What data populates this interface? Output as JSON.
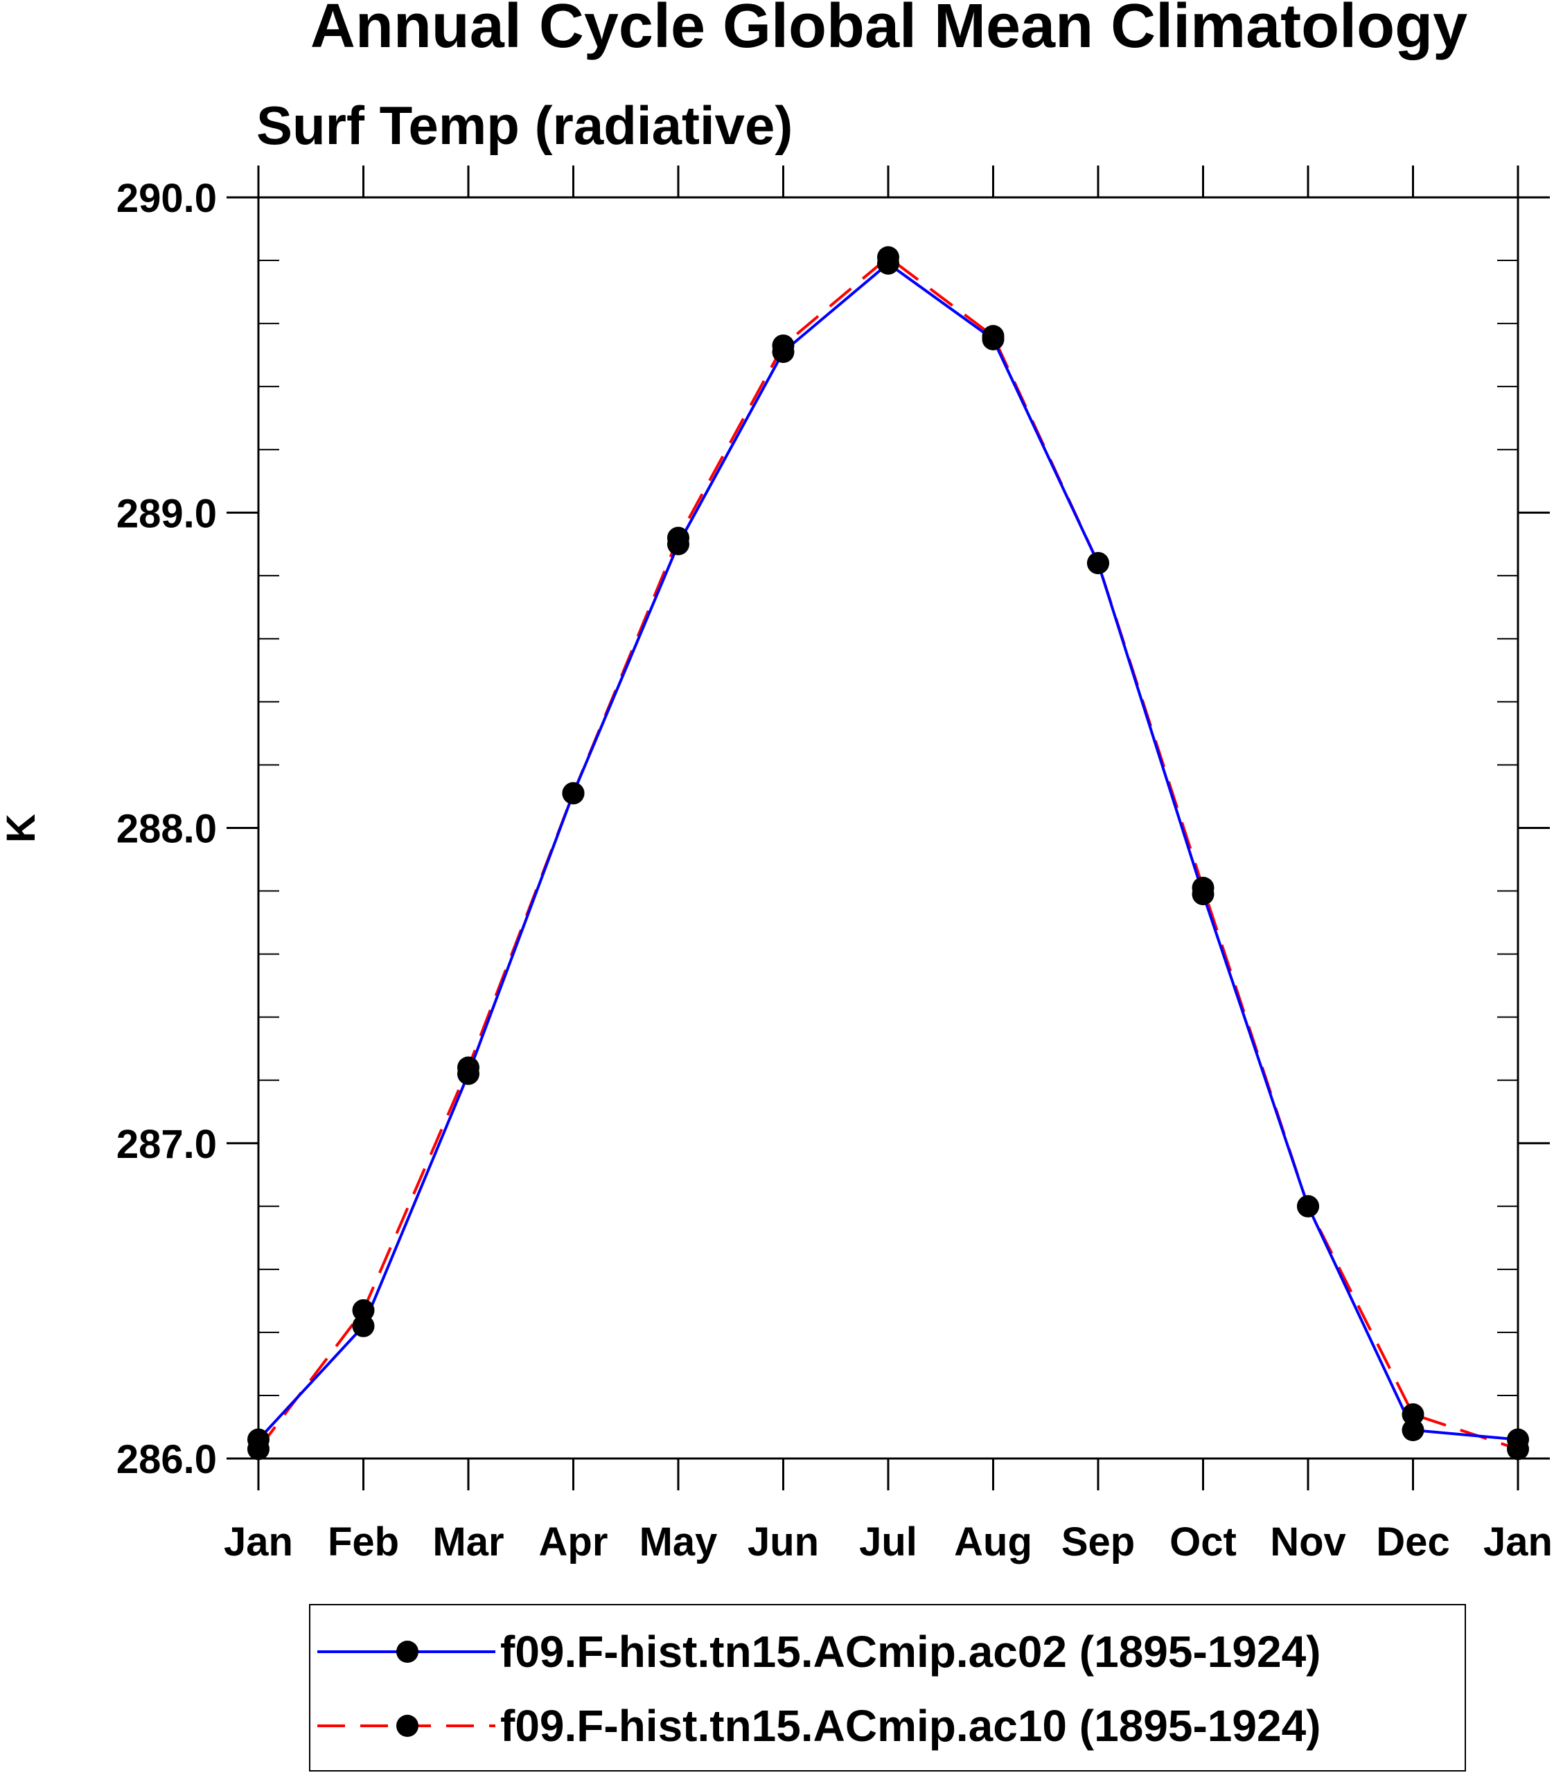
{
  "chart_data": {
    "type": "line",
    "title": "Annual Cycle Global Mean Climatology",
    "subtitle": "Surf Temp (radiative)",
    "xlabel": "",
    "ylabel": "K",
    "categories": [
      "Jan",
      "Feb",
      "Mar",
      "Apr",
      "May",
      "Jun",
      "Jul",
      "Aug",
      "Sep",
      "Oct",
      "Nov",
      "Dec",
      "Jan"
    ],
    "ylim": [
      286.0,
      290.0
    ],
    "yticks": [
      "286.0",
      "287.0",
      "288.0",
      "289.0",
      "290.0"
    ],
    "ytick_values": [
      286,
      287,
      288,
      289,
      290
    ],
    "minor_step": 0.2,
    "grid": false,
    "legend_position": "bottom",
    "series": [
      {
        "name": "f09.F-hist.tn15.ACmip.ac02 (1895-1924)",
        "color": "#0000ff",
        "dash": "solid",
        "marker": "circle",
        "values": [
          286.06,
          286.42,
          287.22,
          288.11,
          288.9,
          289.51,
          289.79,
          289.55,
          288.84,
          287.79,
          286.8,
          286.09,
          286.06
        ]
      },
      {
        "name": "f09.F-hist.tn15.ACmip.ac10 (1895-1924)",
        "color": "#ff0000",
        "dash": "dashed",
        "marker": "circle",
        "values": [
          286.03,
          286.47,
          287.24,
          288.11,
          288.92,
          289.53,
          289.81,
          289.56,
          288.84,
          287.81,
          286.8,
          286.14,
          286.03
        ]
      }
    ]
  }
}
